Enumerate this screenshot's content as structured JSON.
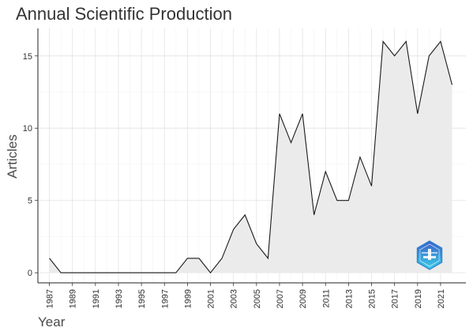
{
  "chart_data": {
    "type": "area",
    "title": "Annual Scientific Production",
    "xlabel": "Year",
    "ylabel": "Articles",
    "x": [
      1987,
      1988,
      1989,
      1990,
      1991,
      1992,
      1993,
      1994,
      1995,
      1996,
      1997,
      1998,
      1999,
      2000,
      2001,
      2002,
      2003,
      2004,
      2005,
      2006,
      2007,
      2008,
      2009,
      2010,
      2011,
      2012,
      2013,
      2014,
      2015,
      2016,
      2017,
      2018,
      2019,
      2020,
      2021,
      2022
    ],
    "y": [
      1,
      0,
      0,
      0,
      0,
      0,
      0,
      0,
      0,
      0,
      0,
      0,
      1,
      1,
      0,
      1,
      3,
      4,
      2,
      1,
      11,
      9,
      11,
      4,
      7,
      5,
      5,
      8,
      6,
      16,
      15,
      16,
      11,
      15,
      16,
      13
    ],
    "xticks": [
      1987,
      1989,
      1991,
      1993,
      1995,
      1997,
      1999,
      2001,
      2003,
      2005,
      2007,
      2009,
      2011,
      2013,
      2015,
      2017,
      2019,
      2021
    ],
    "yticks": [
      0,
      5,
      10,
      15
    ],
    "xlim": [
      1986.0,
      2023.2
    ],
    "ylim": [
      -0.7,
      16.9
    ],
    "grid": true,
    "line_color": "#1a1a1a",
    "fill_color": "#ebebeb",
    "logo_color": "#2f7fd1"
  }
}
